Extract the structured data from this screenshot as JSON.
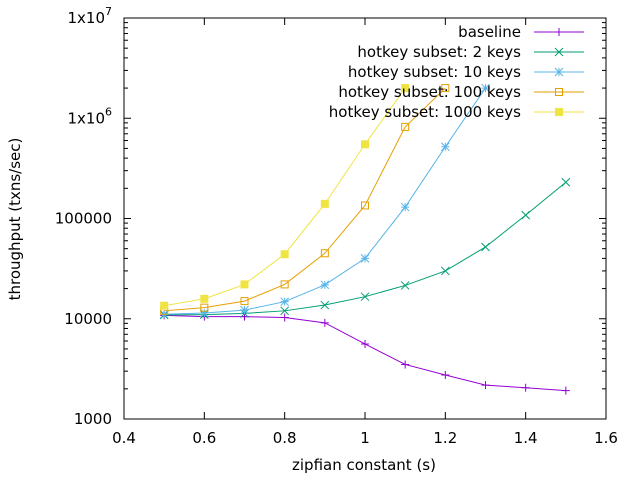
{
  "chart_data": {
    "type": "line",
    "title": "",
    "xlabel": "zipfian constant (s)",
    "ylabel": "throughput (txns/sec)",
    "xlim": [
      0.4,
      1.6
    ],
    "ylim": [
      1000,
      10000000
    ],
    "yscale": "log",
    "grid": false,
    "legend_position": "top-right",
    "x_ticks": [
      0.4,
      0.6,
      0.8,
      1,
      1.2,
      1.4,
      1.6
    ],
    "x_tick_labels": [
      "0.4",
      "0.6",
      "0.8",
      "1",
      "1.2",
      "1.4",
      "1.6"
    ],
    "y_ticks": [
      {
        "value": 1000,
        "base": "1000",
        "exp": ""
      },
      {
        "value": 10000,
        "base": "10000",
        "exp": ""
      },
      {
        "value": 100000,
        "base": "100000",
        "exp": ""
      },
      {
        "value": 1000000,
        "base": "1x10",
        "exp": "6"
      },
      {
        "value": 10000000,
        "base": "1x10",
        "exp": "7"
      }
    ],
    "series": [
      {
        "name": "baseline",
        "color": "#9400d3",
        "marker": "plus",
        "x": [
          0.5,
          0.6,
          0.7,
          0.8,
          0.9,
          1.0,
          1.1,
          1.2,
          1.3,
          1.4,
          1.5
        ],
        "y": [
          10800,
          10500,
          10500,
          10300,
          9100,
          5600,
          3500,
          2750,
          2180,
          2050,
          1920
        ]
      },
      {
        "name": "hotkey subset: 2 keys",
        "color": "#009e73",
        "marker": "cross",
        "x": [
          0.5,
          0.6,
          0.7,
          0.8,
          0.9,
          1.0,
          1.1,
          1.2,
          1.3,
          1.4,
          1.5
        ],
        "y": [
          10900,
          11000,
          11300,
          12000,
          13700,
          16600,
          21500,
          30000,
          52000,
          108000,
          230000
        ]
      },
      {
        "name": "hotkey subset: 10 keys",
        "color": "#56b4e9",
        "marker": "star",
        "x": [
          0.5,
          0.6,
          0.7,
          0.8,
          0.9,
          1.0,
          1.1,
          1.2,
          1.3
        ],
        "y": [
          11100,
          11400,
          12200,
          14800,
          21800,
          40000,
          130000,
          520000,
          2000000
        ]
      },
      {
        "name": "hotkey subset: 100 keys",
        "color": "#e69f00",
        "marker": "open-square",
        "x": [
          0.5,
          0.6,
          0.7,
          0.8,
          0.9,
          1.0,
          1.1,
          1.2
        ],
        "y": [
          12000,
          12900,
          15000,
          22000,
          45000,
          135000,
          820000,
          2000000
        ]
      },
      {
        "name": "hotkey subset: 1000 keys",
        "color": "#f0e442",
        "marker": "filled-square",
        "x": [
          0.5,
          0.6,
          0.7,
          0.8,
          0.9,
          1.0,
          1.1
        ],
        "y": [
          13500,
          15800,
          22000,
          44000,
          140000,
          550000,
          2000000
        ]
      }
    ]
  }
}
